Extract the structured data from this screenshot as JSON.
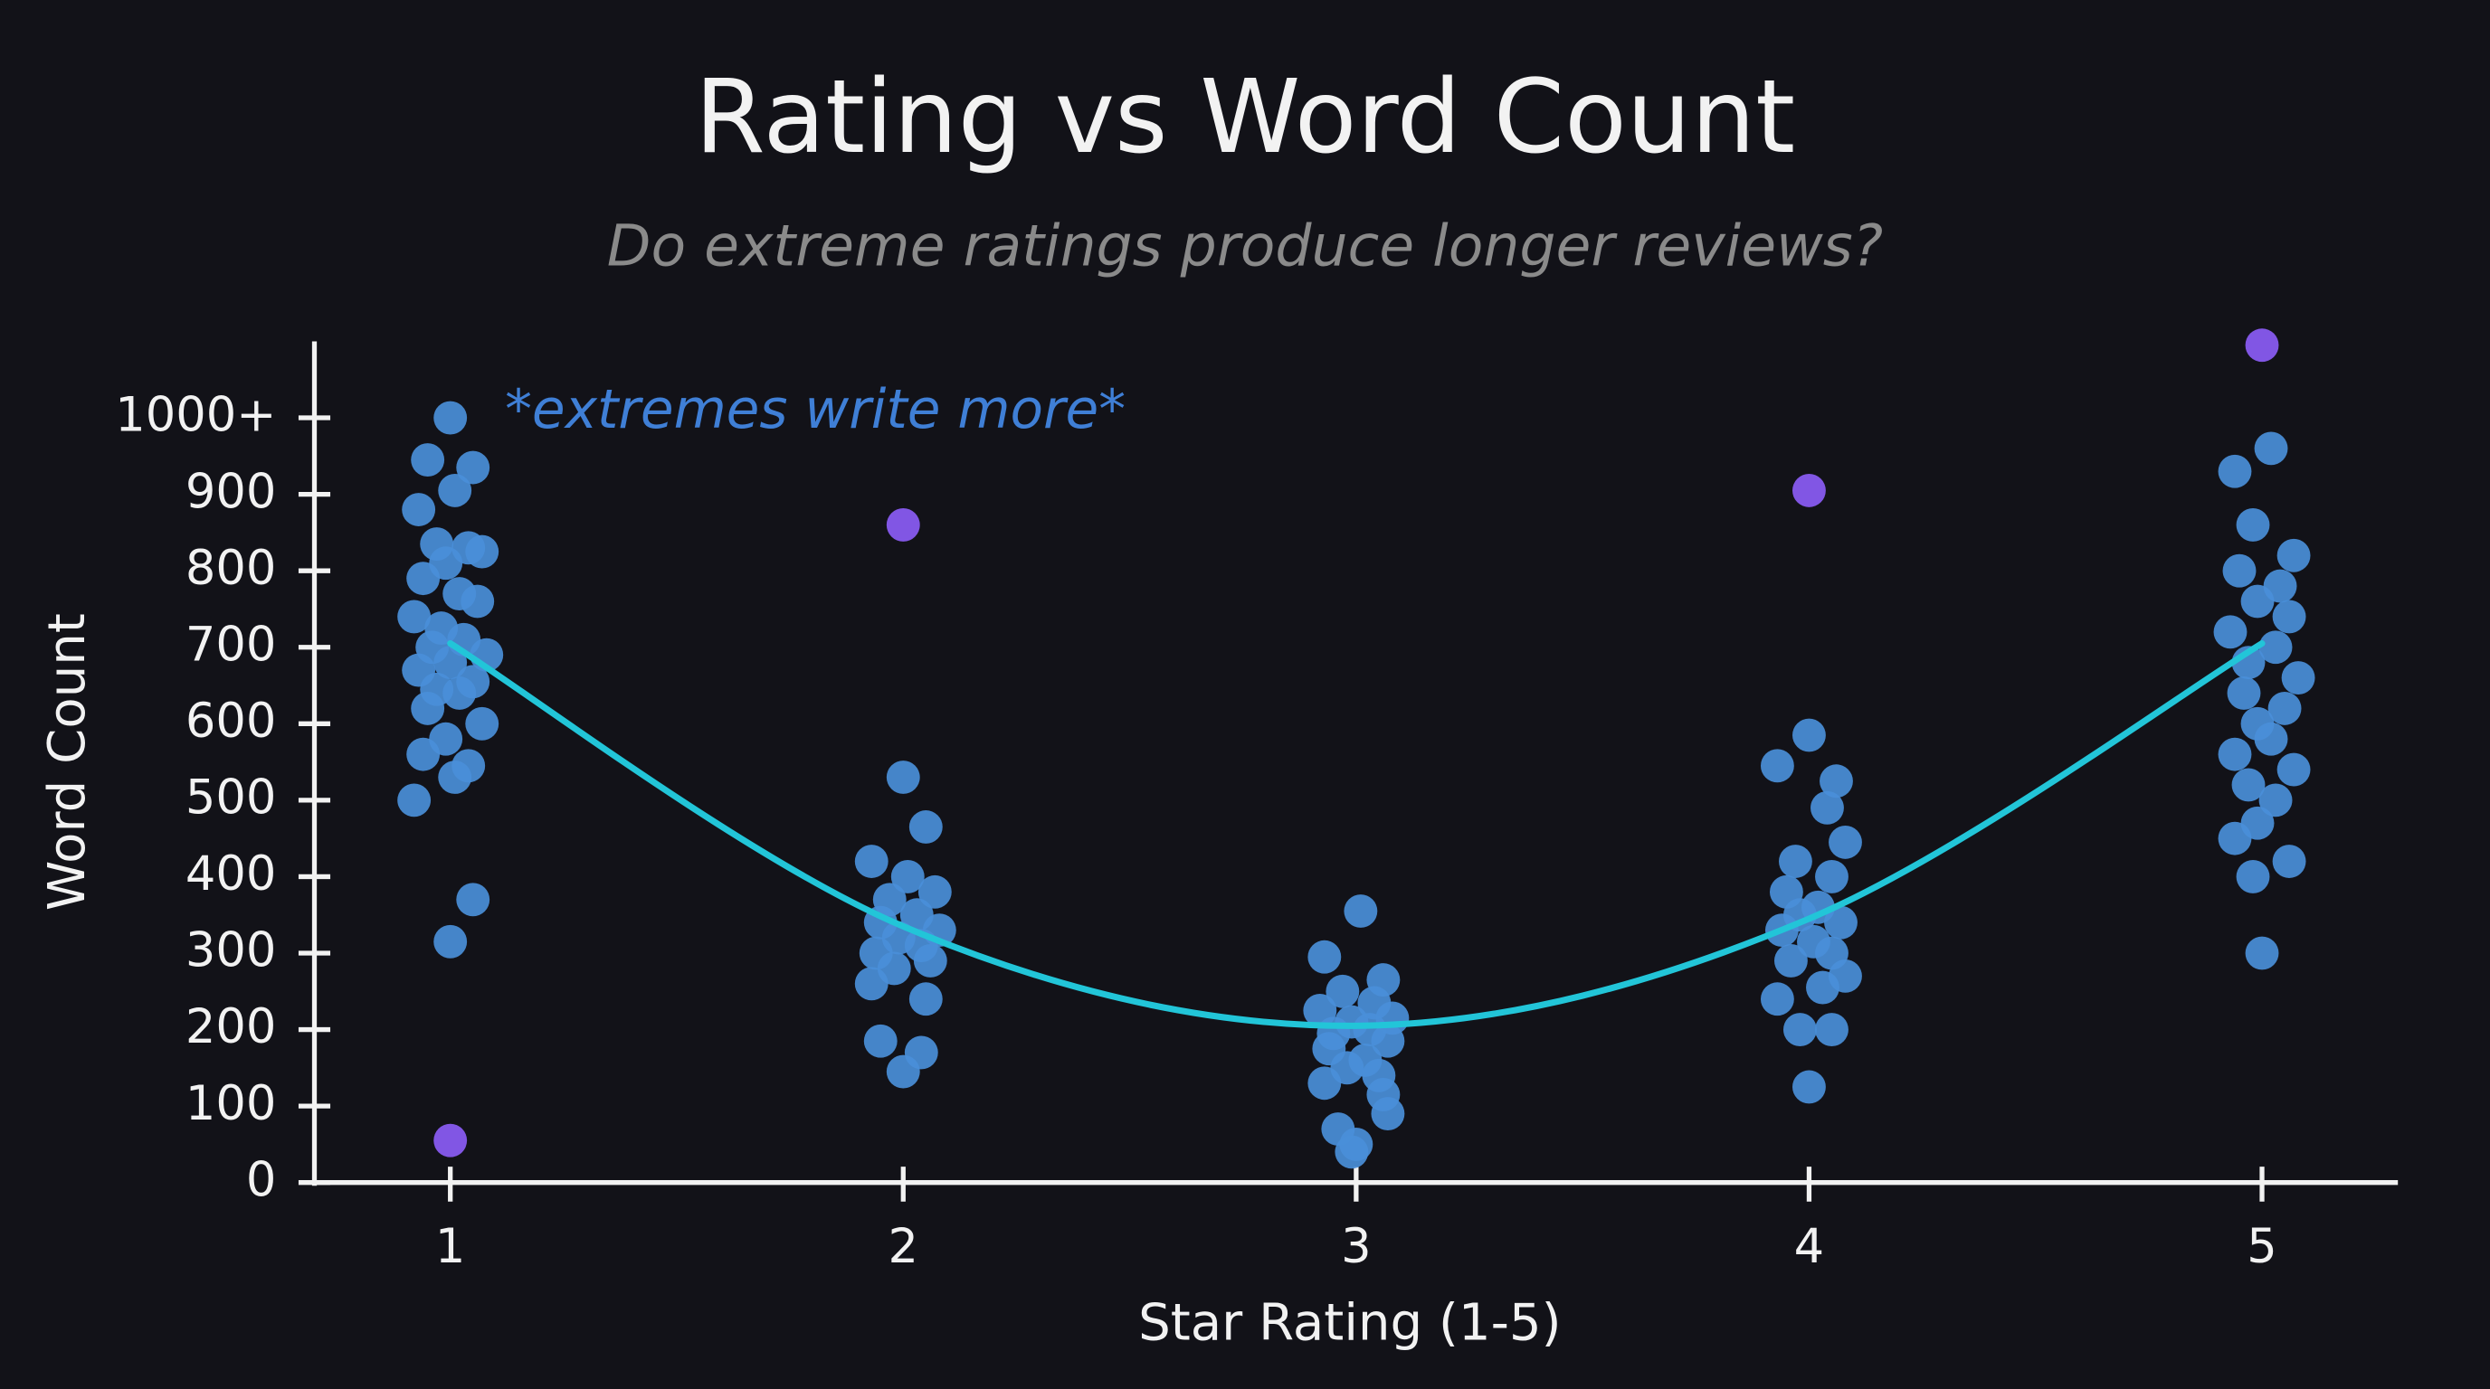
{
  "chart_data": {
    "type": "scatter",
    "title": "Rating vs Word Count",
    "subtitle": "Do extreme ratings produce longer reviews?",
    "annotation": "*extremes write more*",
    "x_label": "Star Rating (1-5)",
    "y_label": "Word Count",
    "xlim": [
      0.7,
      5.3
    ],
    "ylim": [
      0,
      1100
    ],
    "xticks": [
      1,
      2,
      3,
      4,
      5
    ],
    "yticks": [
      0,
      100,
      200,
      300,
      400,
      500,
      600,
      700,
      800,
      900,
      {
        "value": 1000,
        "label": "1000+"
      }
    ],
    "series": [
      {
        "color": "#4a8fd9",
        "x": [
          1.0,
          0.95,
          1.05,
          1.01,
          0.93,
          0.97,
          1.04,
          1.07,
          0.99,
          0.94,
          1.02,
          1.06,
          0.92,
          0.98,
          1.03,
          0.96,
          1.08,
          1.0,
          0.93,
          1.05,
          0.97,
          1.02,
          0.95,
          1.07,
          0.99,
          0.94,
          1.04,
          1.01,
          0.92,
          1.05,
          1.0,
          2.0,
          2.05,
          1.93,
          2.01,
          2.07,
          1.97,
          2.03,
          1.95,
          2.08,
          1.99,
          2.04,
          1.94,
          2.06,
          1.98,
          1.93,
          2.05,
          1.95,
          2.04,
          2.0,
          3.01,
          2.93,
          3.06,
          2.97,
          3.04,
          2.92,
          3.08,
          2.99,
          3.03,
          2.95,
          3.07,
          2.94,
          3.02,
          2.98,
          3.05,
          2.93,
          3.06,
          3.07,
          2.96,
          3.0,
          2.99,
          4.0,
          3.93,
          4.06,
          4.04,
          4.08,
          3.97,
          4.05,
          3.95,
          4.02,
          3.98,
          4.07,
          3.94,
          4.01,
          4.05,
          3.96,
          4.08,
          4.03,
          3.93,
          3.98,
          4.05,
          4.0,
          5.02,
          4.94,
          4.98,
          5.07,
          4.95,
          5.04,
          4.99,
          5.06,
          4.93,
          5.03,
          4.97,
          5.08,
          4.96,
          5.05,
          4.99,
          5.02,
          4.94,
          5.07,
          4.97,
          5.03,
          4.99,
          4.94,
          5.06,
          4.98,
          5.0
        ],
        "values": [
          1000,
          945,
          935,
          905,
          880,
          835,
          830,
          825,
          810,
          790,
          770,
          760,
          740,
          725,
          710,
          700,
          690,
          680,
          670,
          655,
          645,
          640,
          620,
          600,
          580,
          560,
          545,
          530,
          500,
          370,
          315,
          530,
          465,
          420,
          400,
          380,
          370,
          350,
          340,
          330,
          320,
          310,
          300,
          290,
          280,
          260,
          240,
          185,
          170,
          145,
          355,
          295,
          265,
          250,
          235,
          225,
          215,
          210,
          200,
          195,
          185,
          175,
          160,
          150,
          140,
          130,
          115,
          90,
          70,
          50,
          40,
          585,
          545,
          525,
          490,
          445,
          420,
          400,
          380,
          360,
          350,
          340,
          330,
          315,
          300,
          290,
          270,
          255,
          240,
          200,
          200,
          125,
          960,
          930,
          860,
          820,
          800,
          780,
          760,
          740,
          720,
          700,
          680,
          660,
          640,
          620,
          600,
          580,
          560,
          540,
          520,
          500,
          470,
          450,
          420,
          400,
          300
        ]
      },
      {
        "color": "#8b5cf6",
        "x": [
          1,
          2,
          4,
          5
        ],
        "values": [
          55,
          860,
          905,
          1095
        ]
      },
      {
        "color": "#22c5d8",
        "mode": "line",
        "x": [
          1,
          2,
          3,
          4,
          5
        ],
        "values": [
          705,
          335,
          205,
          345,
          705
        ]
      }
    ]
  }
}
